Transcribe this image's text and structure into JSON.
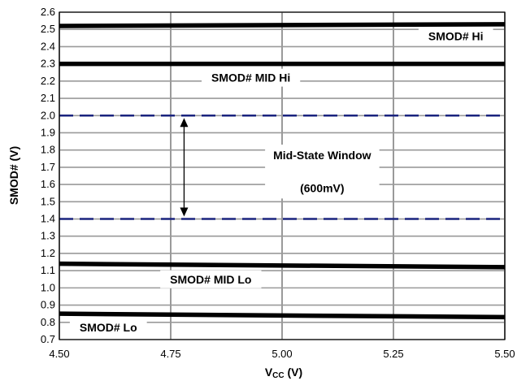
{
  "chart_data": {
    "type": "line",
    "xlabel_main": "V",
    "xlabel_sub": "CC",
    "xlabel_unit": " (V)",
    "ylabel": "SMOD# (V)",
    "xlim": [
      4.5,
      5.5
    ],
    "ylim": [
      0.7,
      2.6
    ],
    "x_ticks": [
      "4.50",
      "4.75",
      "5.00",
      "5.25",
      "5.50"
    ],
    "y_ticks": [
      "0.7",
      "0.8",
      "0.9",
      "1.0",
      "1.1",
      "1.2",
      "1.3",
      "1.4",
      "1.5",
      "1.6",
      "1.7",
      "1.8",
      "1.9",
      "2.0",
      "2.1",
      "2.2",
      "2.3",
      "2.4",
      "2.5",
      "2.6"
    ],
    "grid": true,
    "series": [
      {
        "name": "SMOD# Hi",
        "x": [
          4.5,
          5.5
        ],
        "y": [
          2.52,
          2.53
        ],
        "style": "solid",
        "color": "#000000"
      },
      {
        "name": "SMOD# MID Hi",
        "x": [
          4.5,
          5.5
        ],
        "y": [
          2.3,
          2.3
        ],
        "style": "solid",
        "color": "#000000"
      },
      {
        "name": "",
        "x": [
          4.5,
          5.5
        ],
        "y": [
          2.0,
          2.0
        ],
        "style": "dashed",
        "color": "#1a237e"
      },
      {
        "name": "",
        "x": [
          4.5,
          5.5
        ],
        "y": [
          1.4,
          1.4
        ],
        "style": "dashed",
        "color": "#1a237e"
      },
      {
        "name": "SMOD# MID Lo",
        "x": [
          4.5,
          5.5
        ],
        "y": [
          1.14,
          1.12
        ],
        "style": "solid",
        "color": "#000000"
      },
      {
        "name": "SMOD# Lo",
        "x": [
          4.5,
          5.5
        ],
        "y": [
          0.85,
          0.83
        ],
        "style": "solid",
        "color": "#000000"
      }
    ],
    "annotations": [
      {
        "text": "SMOD# Hi",
        "x": 5.39,
        "y": 2.46
      },
      {
        "text": "SMOD# MID Hi",
        "x": 4.93,
        "y": 2.22
      },
      {
        "text": "SMOD# MID Lo",
        "x": 4.84,
        "y": 1.05
      },
      {
        "text": "SMOD# Lo",
        "x": 4.61,
        "y": 0.77
      }
    ],
    "window_label": [
      "Mid-State Window",
      "(600mV)"
    ],
    "window_label_pos": {
      "x": 5.09,
      "y1": 1.77,
      "y2": 1.58
    },
    "arrow": {
      "x": 4.78,
      "y_from": 1.4,
      "y_to": 2.0
    }
  }
}
